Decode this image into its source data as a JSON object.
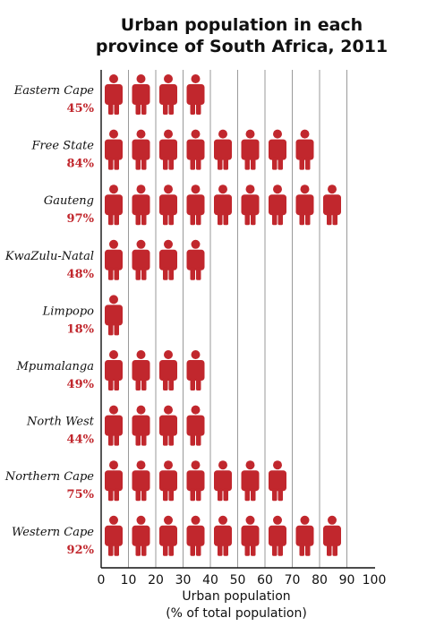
{
  "chart_data": {
    "type": "bar",
    "title": [
      "Urban population in each",
      "province of South Africa, 2011"
    ],
    "xlabel": [
      "Urban population",
      "(% of total population)"
    ],
    "xlim": [
      0,
      100
    ],
    "xticks": [
      0,
      10,
      20,
      30,
      40,
      50,
      60,
      70,
      80,
      90,
      100
    ],
    "grid": "vertical",
    "categories": [
      "Eastern Cape",
      "Free State",
      "Gauteng",
      "KwaZulu-Natal",
      "Limpopo",
      "Mpumalanga",
      "North West",
      "Northern Cape",
      "Western Cape"
    ],
    "values": [
      45,
      84,
      97,
      48,
      18,
      49,
      44,
      75,
      92
    ],
    "value_labels": [
      "45%",
      "84%",
      "97%",
      "48%",
      "18%",
      "49%",
      "44%",
      "75%",
      "92%"
    ],
    "mark_color": "#c1272d",
    "units_per_icon": 10
  }
}
